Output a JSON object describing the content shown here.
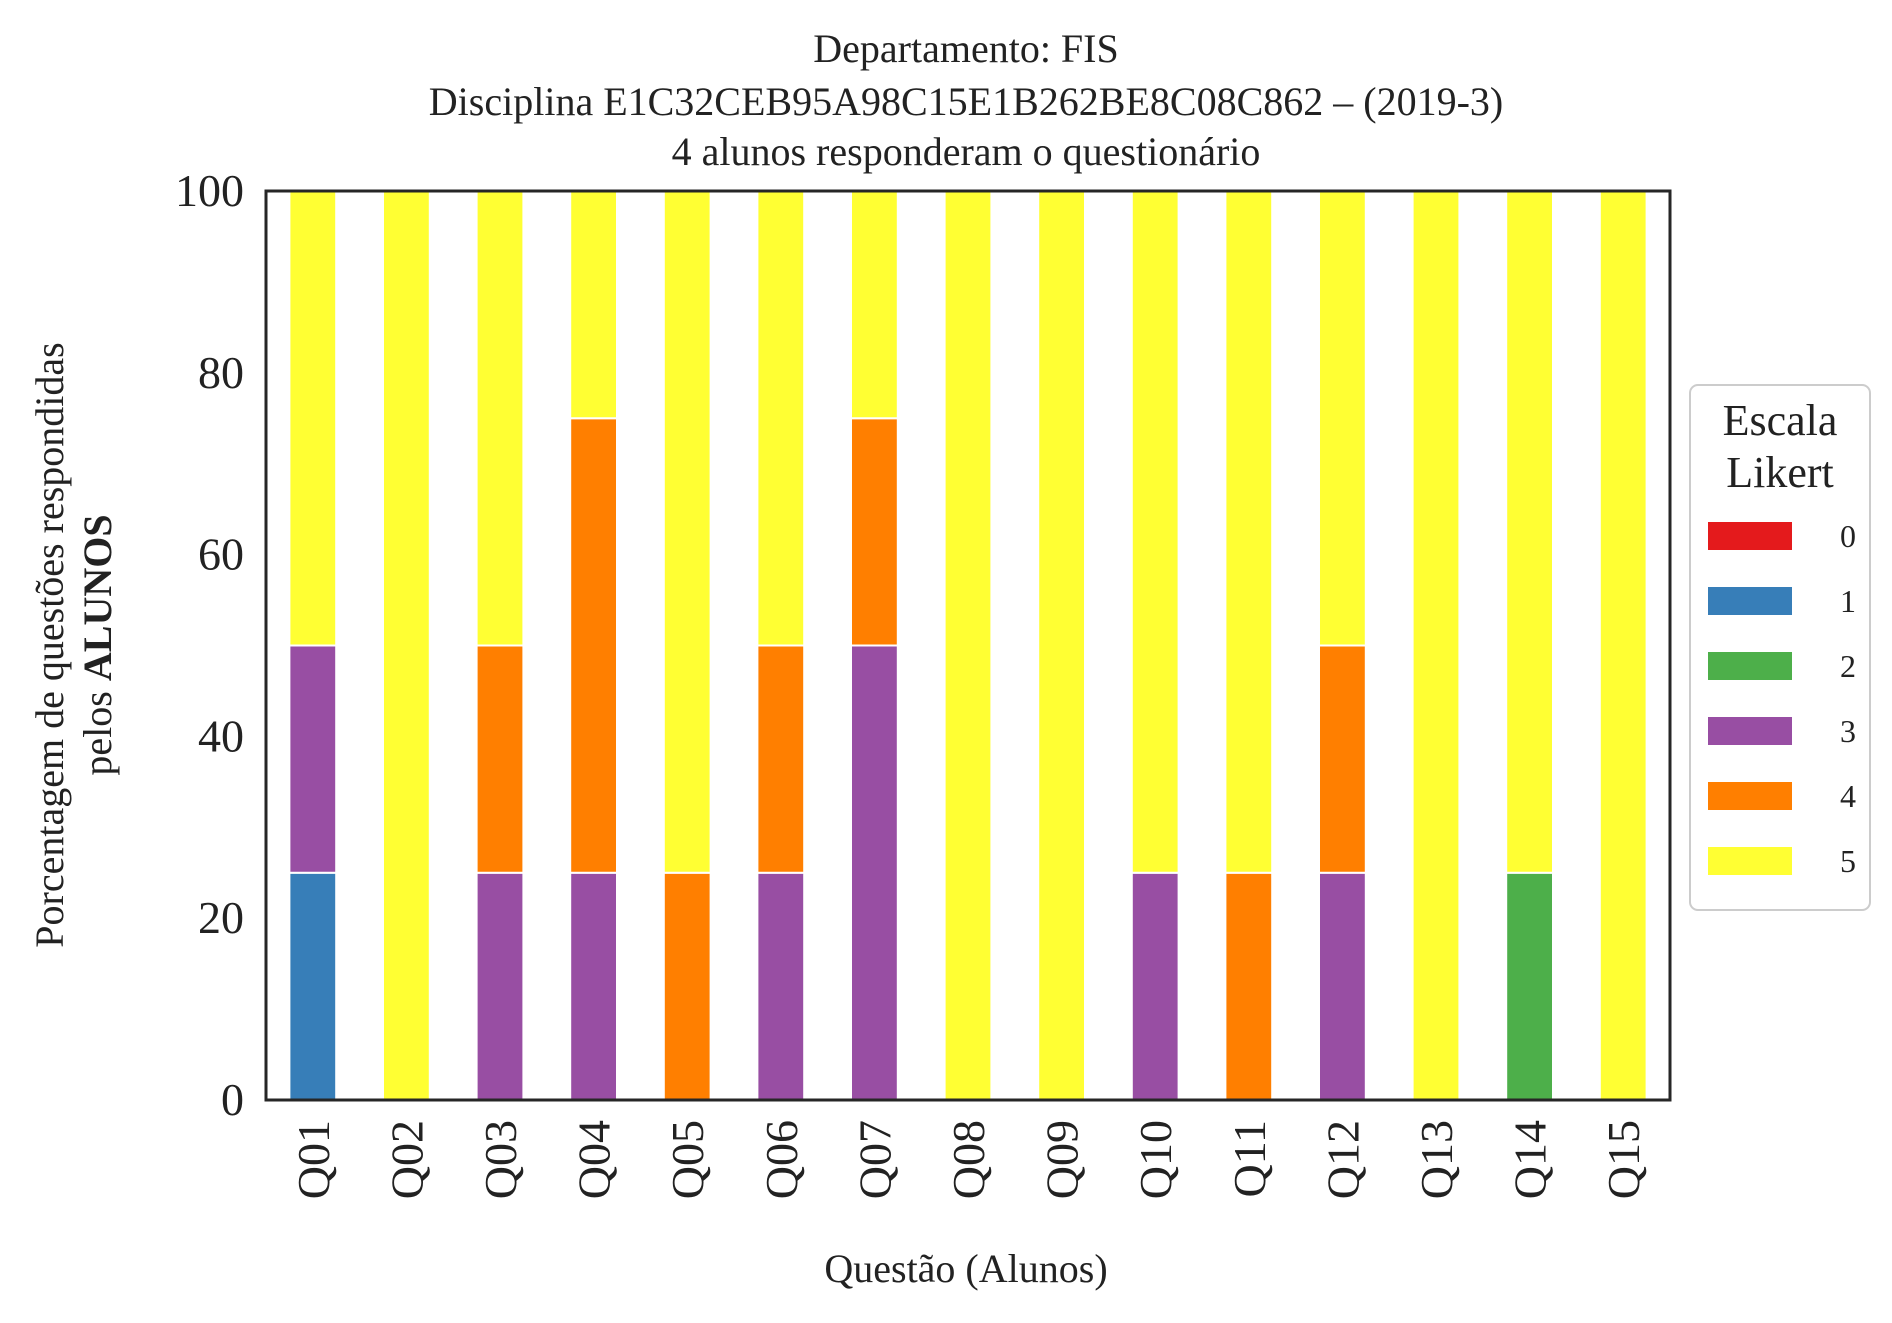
{
  "chart_data": {
    "type": "bar",
    "stacked": true,
    "title_lines": [
      "Departamento: FIS",
      "Disciplina E1C32CEB95A98C15E1B262BE8C08C862 – (2019-3)",
      "4 alunos responderam o questionário"
    ],
    "xlabel": "Questão (Alunos)",
    "ylabel_line1": "Porcentagem de questões respondidas",
    "ylabel_line2_prefix": "pelos ",
    "ylabel_line2_bold": "ALUNOS",
    "ylim": [
      0,
      100
    ],
    "yticks": [
      "0",
      "20",
      "40",
      "60",
      "80",
      "100"
    ],
    "grid": false,
    "legend_placement": "right",
    "legend_title_lines": [
      "Escala",
      "Likert"
    ],
    "categories": [
      "Q01",
      "Q02",
      "Q03",
      "Q04",
      "Q05",
      "Q06",
      "Q07",
      "Q08",
      "Q09",
      "Q10",
      "Q11",
      "Q12",
      "Q13",
      "Q14",
      "Q15"
    ],
    "series": [
      {
        "name": "0",
        "color": "#e41a1c",
        "values": [
          0,
          0,
          0,
          0,
          0,
          0,
          0,
          0,
          0,
          0,
          0,
          0,
          0,
          0,
          0
        ]
      },
      {
        "name": "1",
        "color": "#377eb8",
        "values": [
          25,
          0,
          0,
          0,
          0,
          0,
          0,
          0,
          0,
          0,
          0,
          0,
          0,
          0,
          0
        ]
      },
      {
        "name": "2",
        "color": "#4daf4a",
        "values": [
          0,
          0,
          0,
          0,
          0,
          0,
          0,
          0,
          0,
          0,
          0,
          0,
          0,
          25,
          0
        ]
      },
      {
        "name": "3",
        "color": "#984ea3",
        "values": [
          25,
          0,
          25,
          25,
          0,
          25,
          50,
          0,
          0,
          25,
          0,
          25,
          0,
          0,
          0
        ]
      },
      {
        "name": "4",
        "color": "#ff7f00",
        "values": [
          0,
          0,
          25,
          50,
          25,
          25,
          25,
          0,
          0,
          0,
          25,
          25,
          0,
          0,
          0
        ]
      },
      {
        "name": "5",
        "color": "#ffff33",
        "values": [
          50,
          100,
          50,
          25,
          75,
          50,
          25,
          100,
          100,
          75,
          75,
          50,
          100,
          75,
          100
        ]
      }
    ]
  }
}
